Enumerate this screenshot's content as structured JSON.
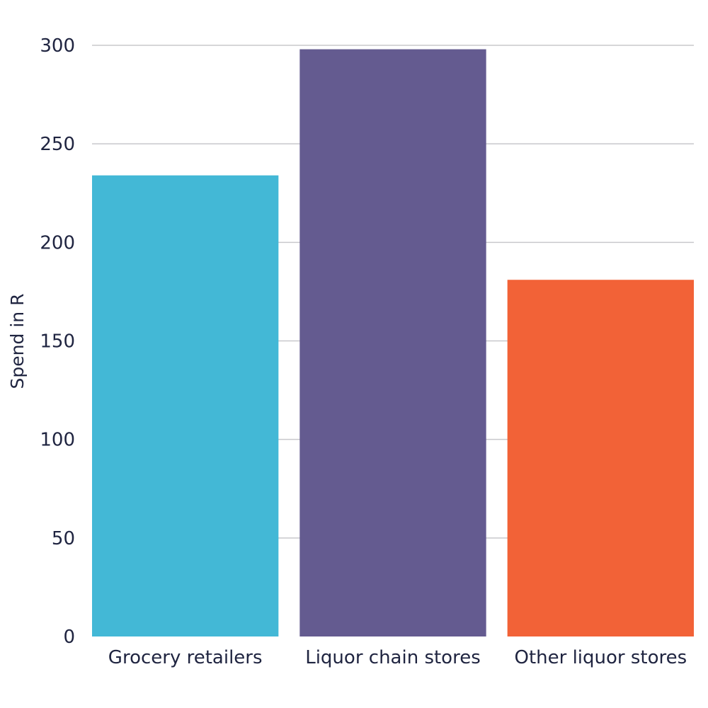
{
  "chart_data": {
    "type": "bar",
    "title": "",
    "xlabel": "",
    "ylabel": "Spend in R",
    "ylim": [
      0,
      300
    ],
    "yticks": [
      0,
      50,
      100,
      150,
      200,
      250,
      300
    ],
    "grid": true,
    "legend": "none",
    "categories": [
      "Grocery retailers",
      "Liquor chain stores",
      "Other liquor stores"
    ],
    "values": [
      234,
      298,
      181
    ],
    "colors": [
      "#43b8d6",
      "#645b90",
      "#f26237"
    ]
  }
}
